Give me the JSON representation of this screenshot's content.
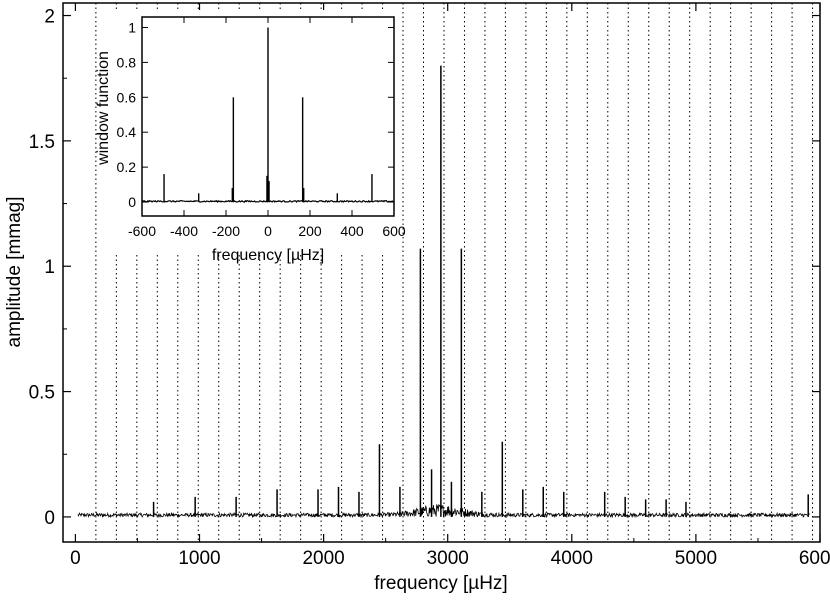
{
  "chart_data": [
    {
      "id": "main",
      "type": "line",
      "xlabel": "frequency [µHz]",
      "ylabel": "amplitude [mmag]",
      "xlim": [
        -100,
        6000
      ],
      "ylim": [
        -0.1,
        2.05
      ],
      "xticks": [
        0,
        1000,
        2000,
        3000,
        4000,
        5000,
        6000
      ],
      "yticks": [
        0,
        0.5,
        1,
        1.5,
        2
      ],
      "xtick_labels": [
        "0",
        "1000",
        "2000",
        "3000",
        "4000",
        "5000",
        "6000"
      ],
      "ytick_labels": [
        "0",
        "0.5",
        "1",
        "1.5",
        "2"
      ],
      "noise_level": 0.015,
      "spectrum_range": [
        20,
        5920
      ],
      "peaks": [
        {
          "x": 2780,
          "y": 1.07
        },
        {
          "x": 2945,
          "y": 1.8
        },
        {
          "x": 3110,
          "y": 1.07
        },
        {
          "x": 2450,
          "y": 0.29
        },
        {
          "x": 3440,
          "y": 0.3
        },
        {
          "x": 2615,
          "y": 0.12
        },
        {
          "x": 2870,
          "y": 0.19
        },
        {
          "x": 3030,
          "y": 0.14
        },
        {
          "x": 3275,
          "y": 0.1
        },
        {
          "x": 2285,
          "y": 0.1
        },
        {
          "x": 2120,
          "y": 0.12
        },
        {
          "x": 1955,
          "y": 0.11
        },
        {
          "x": 1625,
          "y": 0.11
        },
        {
          "x": 1295,
          "y": 0.08
        },
        {
          "x": 965,
          "y": 0.08
        },
        {
          "x": 630,
          "y": 0.06
        },
        {
          "x": 3605,
          "y": 0.11
        },
        {
          "x": 3770,
          "y": 0.12
        },
        {
          "x": 3935,
          "y": 0.1
        },
        {
          "x": 4265,
          "y": 0.1
        },
        {
          "x": 4430,
          "y": 0.08
        },
        {
          "x": 4595,
          "y": 0.07
        },
        {
          "x": 4760,
          "y": 0.07
        },
        {
          "x": 4920,
          "y": 0.06
        },
        {
          "x": 5905,
          "y": 0.09
        }
      ],
      "dotted_lines_x": [
        165,
        330,
        495,
        660,
        825,
        990,
        1155,
        1320,
        1485,
        1650,
        1815,
        1980,
        2145,
        2310,
        2475,
        2640,
        2805,
        2970,
        3135,
        3300,
        3465,
        3630,
        3795,
        3960,
        4125,
        4290,
        4455,
        4620,
        4785,
        4950,
        5115,
        5280,
        5445,
        5610,
        5775,
        5940
      ]
    },
    {
      "id": "inset",
      "type": "line",
      "xlabel": "frequency [µHz]",
      "ylabel": "window function",
      "xlim": [
        -600,
        600
      ],
      "ylim": [
        -0.08,
        1.06
      ],
      "xticks": [
        -600,
        -400,
        -200,
        0,
        200,
        400,
        600
      ],
      "yticks": [
        0,
        0.2,
        0.4,
        0.6,
        0.8,
        1
      ],
      "xtick_labels": [
        "-600",
        "-400",
        "-200",
        "0",
        "200",
        "400",
        "600"
      ],
      "ytick_labels": [
        "0",
        "0.2",
        "0.4",
        "0.6",
        "0.8",
        "1"
      ],
      "peaks": [
        {
          "x": 0,
          "y": 1.0
        },
        {
          "x": -165,
          "y": 0.6
        },
        {
          "x": 165,
          "y": 0.6
        },
        {
          "x": -495,
          "y": 0.16
        },
        {
          "x": 495,
          "y": 0.16
        },
        {
          "x": -330,
          "y": 0.05
        },
        {
          "x": 330,
          "y": 0.05
        },
        {
          "x": -170,
          "y": 0.08
        },
        {
          "x": 170,
          "y": 0.08
        },
        {
          "x": -5,
          "y": 0.15
        },
        {
          "x": 5,
          "y": 0.12
        }
      ]
    }
  ]
}
